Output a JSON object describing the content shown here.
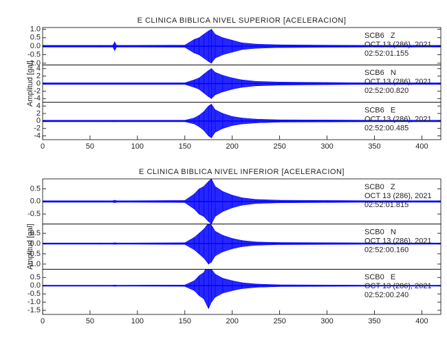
{
  "chart_data": [
    {
      "type": "area",
      "title": "E CLINICA BIBLICA NIVEL SUPERIOR [ACELERACION]",
      "y_label": "Amplitud [gal]",
      "x": [
        0,
        60,
        74,
        76,
        78,
        90,
        150,
        160,
        165,
        170,
        175,
        178,
        182,
        190,
        200,
        210,
        225,
        250,
        300,
        350,
        420
      ],
      "xlim": [
        0,
        420
      ],
      "xticks": [
        0,
        50,
        100,
        150,
        200,
        250,
        300,
        350,
        400
      ],
      "series": [
        {
          "name": "SCB6   Z",
          "date": "OCT 13 (286), 2021",
          "time": "02:52:01.155",
          "color": "#0000ff",
          "ylim": [
            -1.1,
            1.1
          ],
          "yticks": [
            {
              "value": 1,
              "label": "1.0"
            },
            0.5,
            {
              "value": 0,
              "label": "0.0"
            },
            -0.5,
            {
              "value": -1,
              "label": "-1.0"
            }
          ],
          "values": [
            0.05,
            0.05,
            0.05,
            0.25,
            0.05,
            0.05,
            0.06,
            0.4,
            0.5,
            0.7,
            0.9,
            1.0,
            0.7,
            0.5,
            0.35,
            0.2,
            0.12,
            0.08,
            0.06,
            0.05,
            0.05
          ]
        },
        {
          "name": "SCB6   N",
          "date": "OCT 13 (286), 2021",
          "time": "02:52:00.820",
          "color": "#0000ff",
          "ylim": [
            -5,
            5
          ],
          "yticks": [
            4,
            2,
            0,
            -2,
            -4
          ],
          "values": [
            0.2,
            0.2,
            0.2,
            0.2,
            0.2,
            0.2,
            0.2,
            1.0,
            1.5,
            2.5,
            3.5,
            4.0,
            3.0,
            2.2,
            1.5,
            1.0,
            0.6,
            0.4,
            0.3,
            0.2,
            0.2
          ]
        },
        {
          "name": "SCB6   E",
          "date": "OCT 13 (286), 2021",
          "time": "02:52:00.485",
          "color": "#0000ff",
          "ylim": [
            -5,
            5
          ],
          "yticks": [
            4,
            2,
            0,
            -2,
            -4
          ],
          "values": [
            0.2,
            0.2,
            0.2,
            0.2,
            0.2,
            0.2,
            0.2,
            0.8,
            1.5,
            2.5,
            4.0,
            4.5,
            3.0,
            2.0,
            1.2,
            0.8,
            0.5,
            0.3,
            0.25,
            0.2,
            0.2
          ]
        }
      ]
    },
    {
      "type": "area",
      "title": "E CLINICA BIBLICA NIVEL INFERIOR [ACELERACION]",
      "y_label": "Amplitud [gal]",
      "x": [
        0,
        60,
        74,
        76,
        78,
        90,
        150,
        160,
        165,
        170,
        175,
        178,
        182,
        190,
        200,
        210,
        225,
        250,
        300,
        350,
        420
      ],
      "xlim": [
        0,
        420
      ],
      "xticks": [
        0,
        50,
        100,
        150,
        200,
        250,
        300,
        350,
        400
      ],
      "series": [
        {
          "name": "SCB0   Z",
          "date": "OCT 13 (286), 2021",
          "time": "02:52:01.815",
          "color": "#0000ff",
          "ylim": [
            -0.9,
            0.9
          ],
          "yticks": [
            0.5,
            {
              "value": 0,
              "label": "0.0"
            },
            -0.5
          ],
          "values": [
            0.03,
            0.03,
            0.03,
            0.05,
            0.03,
            0.03,
            0.04,
            0.3,
            0.5,
            0.6,
            0.8,
            0.9,
            0.6,
            0.4,
            0.25,
            0.15,
            0.08,
            0.05,
            0.04,
            0.03,
            0.03
          ]
        },
        {
          "name": "SCB0   N",
          "date": "OCT 13 (286), 2021",
          "time": "02:52:00.160",
          "color": "#0000ff",
          "ylim": [
            -1.25,
            0.95
          ],
          "yticks": [
            0.5,
            {
              "value": 0,
              "label": "0.0"
            },
            -0.5,
            {
              "value": -1,
              "label": "-1.0"
            }
          ],
          "values": [
            0.03,
            0.03,
            0.03,
            0.04,
            0.03,
            0.03,
            0.04,
            0.3,
            0.5,
            0.7,
            1.0,
            0.9,
            0.6,
            0.4,
            0.25,
            0.15,
            0.08,
            0.05,
            0.04,
            0.03,
            0.03
          ]
        },
        {
          "name": "SCB0   E",
          "date": "OCT 13 (286), 2021",
          "time": "02:52:00.240",
          "color": "#0000ff",
          "ylim": [
            -1.75,
            1.0
          ],
          "yticks": [
            0.5,
            {
              "value": 0,
              "label": "0.0"
            },
            -0.5,
            {
              "value": -1,
              "label": "-1.0"
            },
            -1.5
          ],
          "values": [
            0.03,
            0.03,
            0.03,
            0.04,
            0.03,
            0.03,
            0.04,
            0.3,
            0.6,
            0.8,
            1.4,
            1.0,
            0.7,
            0.45,
            0.3,
            0.18,
            0.1,
            0.05,
            0.04,
            0.03,
            0.03
          ]
        }
      ]
    }
  ]
}
